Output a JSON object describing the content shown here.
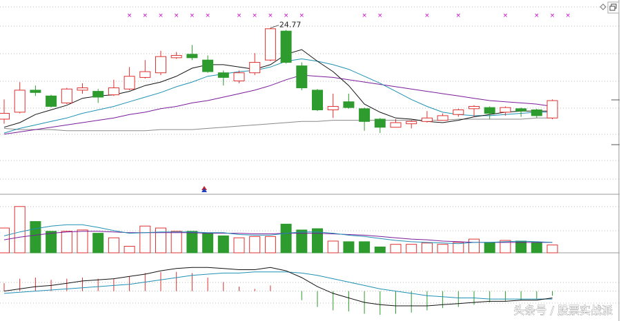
{
  "watermark": "头条号 / 股票实战派",
  "max_label": "24.77",
  "colors": {
    "up": "#e03030",
    "down": "#2e9b2e",
    "ma_short": "#111111",
    "ma_mid": "#1e90b4",
    "ma_long": "#7a1a9a",
    "ma_vlong": "#888888",
    "signal": "#cc00cc",
    "grid": "#b8b8b8",
    "border": "#9a9a9a"
  },
  "icons": {
    "corner": "diamond-icon",
    "window": "restore-icon",
    "signal_marker": "x-marker",
    "arrow": "up-arrow-icon"
  },
  "chart_data": {
    "type": "candlestick",
    "candles": [
      {
        "o": 16.9,
        "c": 17.4,
        "h": 18.6,
        "l": 16.5
      },
      {
        "o": 17.5,
        "c": 19.4,
        "h": 20.1,
        "l": 17.4
      },
      {
        "o": 19.4,
        "c": 19.2,
        "h": 19.8,
        "l": 18.9
      },
      {
        "o": 18.9,
        "c": 18.0,
        "h": 19.0,
        "l": 17.9
      },
      {
        "o": 18.3,
        "c": 19.5,
        "h": 19.6,
        "l": 18.2
      },
      {
        "o": 19.4,
        "c": 19.6,
        "h": 20.0,
        "l": 19.1
      },
      {
        "o": 19.3,
        "c": 18.8,
        "h": 19.5,
        "l": 18.3
      },
      {
        "o": 19.0,
        "c": 19.6,
        "h": 20.3,
        "l": 18.9
      },
      {
        "o": 19.5,
        "c": 20.6,
        "h": 21.4,
        "l": 19.4
      },
      {
        "o": 20.5,
        "c": 21.0,
        "h": 22.0,
        "l": 20.4
      },
      {
        "o": 20.9,
        "c": 22.3,
        "h": 22.8,
        "l": 20.7
      },
      {
        "o": 22.2,
        "c": 22.4,
        "h": 22.7,
        "l": 22.1
      },
      {
        "o": 22.5,
        "c": 22.2,
        "h": 23.3,
        "l": 22.0
      },
      {
        "o": 22.0,
        "c": 21.0,
        "h": 22.4,
        "l": 20.9
      },
      {
        "o": 20.9,
        "c": 20.5,
        "h": 21.1,
        "l": 19.8
      },
      {
        "o": 20.2,
        "c": 20.9,
        "h": 21.1,
        "l": 20.0
      },
      {
        "o": 20.9,
        "c": 21.8,
        "h": 22.6,
        "l": 20.7
      },
      {
        "o": 22.0,
        "c": 24.7,
        "h": 24.77,
        "l": 21.9
      },
      {
        "o": 24.5,
        "c": 21.8,
        "h": 24.6,
        "l": 21.7
      },
      {
        "o": 21.5,
        "c": 19.6,
        "h": 21.8,
        "l": 19.4
      },
      {
        "o": 19.4,
        "c": 17.7,
        "h": 19.5,
        "l": 17.6
      },
      {
        "o": 17.7,
        "c": 18.0,
        "h": 19.1,
        "l": 17.0
      },
      {
        "o": 18.4,
        "c": 17.9,
        "h": 19.1,
        "l": 17.8
      },
      {
        "o": 17.8,
        "c": 16.7,
        "h": 17.9,
        "l": 15.9
      },
      {
        "o": 16.9,
        "c": 16.2,
        "h": 17.0,
        "l": 15.7
      },
      {
        "o": 16.2,
        "c": 16.6,
        "h": 16.9,
        "l": 16.2
      },
      {
        "o": 16.5,
        "c": 16.7,
        "h": 16.8,
        "l": 16.1
      },
      {
        "o": 16.7,
        "c": 17.0,
        "h": 17.6,
        "l": 16.6
      },
      {
        "o": 16.8,
        "c": 17.2,
        "h": 17.4,
        "l": 16.8
      },
      {
        "o": 17.3,
        "c": 17.7,
        "h": 17.8,
        "l": 17.1
      },
      {
        "o": 17.8,
        "c": 18.0,
        "h": 18.1,
        "l": 17.1
      },
      {
        "o": 17.9,
        "c": 17.4,
        "h": 18.0,
        "l": 16.9
      },
      {
        "o": 17.5,
        "c": 17.9,
        "h": 18.0,
        "l": 17.2
      },
      {
        "o": 17.8,
        "c": 17.6,
        "h": 17.9,
        "l": 17.1
      },
      {
        "o": 17.7,
        "c": 17.2,
        "h": 17.8,
        "l": 17.0
      },
      {
        "o": 17.0,
        "c": 18.5,
        "h": 18.6,
        "l": 16.9
      }
    ],
    "ma_short": [
      16.2,
      16.6,
      17.3,
      17.7,
      18.1,
      18.7,
      18.9,
      19.0,
      19.3,
      19.8,
      20.1,
      20.6,
      21.3,
      21.6,
      21.6,
      21.4,
      21.2,
      21.6,
      22.5,
      22.9,
      21.9,
      21.0,
      19.8,
      18.2,
      17.5,
      17.0,
      16.9,
      16.7,
      16.6,
      16.8,
      17.1,
      17.3,
      17.5,
      17.6,
      17.6,
      17.6
    ],
    "ma_mid": [
      15.7,
      16.1,
      16.4,
      16.7,
      17.0,
      17.4,
      17.7,
      18.0,
      18.4,
      18.8,
      19.2,
      19.7,
      20.1,
      20.6,
      20.8,
      21.0,
      21.1,
      21.4,
      21.9,
      22.1,
      21.9,
      21.6,
      21.2,
      20.6,
      20.0,
      19.3,
      18.6,
      18.0,
      17.5,
      17.3,
      17.2,
      17.2,
      17.3,
      17.4,
      17.5,
      17.5
    ],
    "ma_long": [
      15.6,
      15.8,
      16.0,
      16.2,
      16.4,
      16.6,
      16.8,
      17.0,
      17.3,
      17.5,
      17.8,
      18.0,
      18.3,
      18.5,
      18.8,
      19.1,
      19.4,
      19.8,
      20.3,
      20.7,
      20.6,
      20.5,
      20.3,
      20.1,
      19.9,
      19.7,
      19.5,
      19.3,
      19.1,
      18.9,
      18.7,
      18.5,
      18.4,
      18.3,
      18.2,
      18.0
    ],
    "ma_vlong": [
      16.1,
      16.0,
      16.0,
      16.0,
      15.9,
      15.9,
      15.9,
      15.9,
      15.9,
      15.9,
      16.0,
      16.0,
      16.0,
      16.1,
      16.2,
      16.3,
      16.4,
      16.5,
      16.6,
      16.7,
      16.7,
      16.8,
      16.8,
      16.8,
      16.8,
      16.8,
      16.8,
      16.8,
      16.8,
      16.9,
      16.9,
      16.9,
      16.9,
      16.9,
      17.0,
      17.0
    ],
    "signals": [
      8,
      9,
      10,
      11,
      12,
      13,
      15,
      16,
      17,
      18,
      19,
      23,
      24,
      27,
      29,
      32,
      34,
      35,
      36
    ],
    "volume": {
      "values": [
        38,
        71,
        48,
        33,
        33,
        35,
        30,
        23,
        10,
        41,
        38,
        33,
        33,
        30,
        26,
        23,
        25,
        25,
        44,
        35,
        37,
        18,
        17,
        17,
        9,
        13,
        13,
        15,
        13,
        16,
        21,
        16,
        19,
        18,
        16,
        12
      ],
      "ma1": [
        26,
        32,
        37,
        41,
        43,
        43,
        39,
        34,
        30,
        31,
        32,
        32,
        32,
        31,
        31,
        28,
        27,
        27,
        30,
        32,
        32,
        30,
        27,
        25,
        22,
        19,
        17,
        16,
        15,
        14,
        16,
        16,
        17,
        18,
        17,
        16
      ],
      "ma2": [
        20,
        24,
        27,
        30,
        32,
        33,
        33,
        32,
        31,
        31,
        31,
        31,
        31,
        30,
        30,
        30,
        29,
        29,
        30,
        30,
        30,
        29,
        28,
        27,
        25,
        23,
        21,
        20,
        18,
        17,
        16,
        16,
        16,
        16,
        16,
        16
      ],
      "ylim": [
        0,
        75
      ]
    },
    "macd": {
      "hist": [
        0.35,
        0.55,
        0.6,
        0.5,
        0.55,
        0.6,
        0.55,
        0.55,
        0.65,
        0.8,
        0.85,
        0.85,
        0.8,
        0.6,
        0.4,
        0.2,
        0.1,
        0.25,
        0,
        -0.4,
        -0.7,
        -0.85,
        -0.9,
        -1.0,
        -1.05,
        -1.0,
        -0.95,
        -0.85,
        -0.75,
        -0.7,
        -0.6,
        -0.5,
        -0.45,
        -0.4,
        -0.35,
        -0.2
      ],
      "dif": [
        0.0,
        0.1,
        0.2,
        0.25,
        0.35,
        0.45,
        0.5,
        0.55,
        0.65,
        0.75,
        0.9,
        1.0,
        1.05,
        1.05,
        1.0,
        0.95,
        0.95,
        1.05,
        0.9,
        0.6,
        0.2,
        -0.1,
        -0.3,
        -0.5,
        -0.6,
        -0.65,
        -0.65,
        -0.65,
        -0.6,
        -0.55,
        -0.5,
        -0.45,
        -0.45,
        -0.4,
        -0.4,
        -0.3
      ],
      "dea": [
        -0.1,
        -0.05,
        0.0,
        0.05,
        0.1,
        0.15,
        0.2,
        0.25,
        0.3,
        0.4,
        0.5,
        0.6,
        0.7,
        0.75,
        0.8,
        0.8,
        0.85,
        0.85,
        0.85,
        0.8,
        0.7,
        0.55,
        0.4,
        0.25,
        0.1,
        0.0,
        -0.1,
        -0.2,
        -0.25,
        -0.3,
        -0.3,
        -0.35,
        -0.35,
        -0.35,
        -0.35,
        -0.35
      ],
      "ylim": [
        -1.2,
        1.3
      ]
    },
    "price_ylim": [
      14.4,
      25.4
    ]
  }
}
